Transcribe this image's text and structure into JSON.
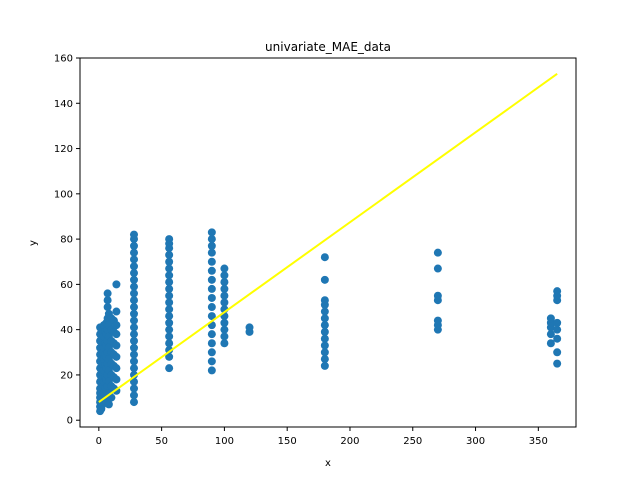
{
  "chart_data": {
    "type": "scatter",
    "title": "univariate_MAE_data",
    "xlabel": "x",
    "ylabel": "y",
    "xlim": [
      -15,
      380
    ],
    "ylim": [
      -3,
      160
    ],
    "xticks": [
      0,
      50,
      100,
      150,
      200,
      250,
      300,
      350
    ],
    "yticks": [
      0,
      20,
      40,
      60,
      80,
      100,
      120,
      140,
      160
    ],
    "grid": false,
    "colors": {
      "points": "#1f77b4",
      "line": "#ffff00"
    },
    "series": [
      {
        "kind": "scatter",
        "points": [
          [
            1,
            4
          ],
          [
            1,
            6
          ],
          [
            1,
            8
          ],
          [
            1,
            10
          ],
          [
            1,
            12
          ],
          [
            1,
            14
          ],
          [
            1,
            17
          ],
          [
            1,
            20
          ],
          [
            1,
            23
          ],
          [
            1,
            26
          ],
          [
            1,
            29
          ],
          [
            1,
            32
          ],
          [
            1,
            35
          ],
          [
            1,
            38
          ],
          [
            1,
            41
          ],
          [
            2,
            5
          ],
          [
            2,
            9
          ],
          [
            2,
            13
          ],
          [
            2,
            18
          ],
          [
            2,
            22
          ],
          [
            2,
            27
          ],
          [
            2,
            31
          ],
          [
            2,
            36
          ],
          [
            2,
            40
          ],
          [
            3,
            7
          ],
          [
            3,
            11
          ],
          [
            3,
            16
          ],
          [
            3,
            21
          ],
          [
            3,
            25
          ],
          [
            3,
            30
          ],
          [
            3,
            34
          ],
          [
            3,
            39
          ],
          [
            4,
            8
          ],
          [
            4,
            12
          ],
          [
            4,
            17
          ],
          [
            4,
            22
          ],
          [
            4,
            27
          ],
          [
            4,
            32
          ],
          [
            4,
            37
          ],
          [
            4,
            42
          ],
          [
            5,
            9
          ],
          [
            5,
            14
          ],
          [
            5,
            19
          ],
          [
            5,
            24
          ],
          [
            5,
            29
          ],
          [
            5,
            34
          ],
          [
            5,
            39
          ],
          [
            6,
            8
          ],
          [
            6,
            13
          ],
          [
            6,
            18
          ],
          [
            6,
            23
          ],
          [
            6,
            28
          ],
          [
            6,
            33
          ],
          [
            6,
            38
          ],
          [
            6,
            43
          ],
          [
            7,
            10
          ],
          [
            7,
            15
          ],
          [
            7,
            20
          ],
          [
            7,
            25
          ],
          [
            7,
            30
          ],
          [
            7,
            35
          ],
          [
            7,
            40
          ],
          [
            7,
            45
          ],
          [
            7,
            50
          ],
          [
            7,
            53
          ],
          [
            7,
            56
          ],
          [
            8,
            7
          ],
          [
            8,
            12
          ],
          [
            8,
            17
          ],
          [
            8,
            22
          ],
          [
            8,
            27
          ],
          [
            8,
            32
          ],
          [
            8,
            37
          ],
          [
            8,
            42
          ],
          [
            8,
            47
          ],
          [
            10,
            10
          ],
          [
            10,
            15
          ],
          [
            10,
            20
          ],
          [
            10,
            25
          ],
          [
            10,
            30
          ],
          [
            10,
            35
          ],
          [
            10,
            40
          ],
          [
            10,
            45
          ],
          [
            12,
            14
          ],
          [
            12,
            19
          ],
          [
            12,
            24
          ],
          [
            12,
            29
          ],
          [
            12,
            34
          ],
          [
            12,
            39
          ],
          [
            12,
            44
          ],
          [
            14,
            13
          ],
          [
            14,
            18
          ],
          [
            14,
            23
          ],
          [
            14,
            28
          ],
          [
            14,
            33
          ],
          [
            14,
            38
          ],
          [
            14,
            42
          ],
          [
            14,
            48
          ],
          [
            14,
            60
          ],
          [
            28,
            8
          ],
          [
            28,
            11
          ],
          [
            28,
            14
          ],
          [
            28,
            17
          ],
          [
            28,
            20
          ],
          [
            28,
            23
          ],
          [
            28,
            26
          ],
          [
            28,
            29
          ],
          [
            28,
            32
          ],
          [
            28,
            35
          ],
          [
            28,
            38
          ],
          [
            28,
            41
          ],
          [
            28,
            44
          ],
          [
            28,
            47
          ],
          [
            28,
            50
          ],
          [
            28,
            53
          ],
          [
            28,
            56
          ],
          [
            28,
            59
          ],
          [
            28,
            62
          ],
          [
            28,
            65
          ],
          [
            28,
            68
          ],
          [
            28,
            71
          ],
          [
            28,
            74
          ],
          [
            28,
            77
          ],
          [
            28,
            80
          ],
          [
            28,
            82
          ],
          [
            56,
            23
          ],
          [
            56,
            28
          ],
          [
            56,
            31
          ],
          [
            56,
            34
          ],
          [
            56,
            37
          ],
          [
            56,
            40
          ],
          [
            56,
            43
          ],
          [
            56,
            46
          ],
          [
            56,
            49
          ],
          [
            56,
            52
          ],
          [
            56,
            55
          ],
          [
            56,
            58
          ],
          [
            56,
            61
          ],
          [
            56,
            64
          ],
          [
            56,
            67
          ],
          [
            56,
            70
          ],
          [
            56,
            73
          ],
          [
            56,
            76
          ],
          [
            56,
            78
          ],
          [
            56,
            80
          ],
          [
            90,
            22
          ],
          [
            90,
            26
          ],
          [
            90,
            30
          ],
          [
            90,
            34
          ],
          [
            90,
            38
          ],
          [
            90,
            42
          ],
          [
            90,
            46
          ],
          [
            90,
            50
          ],
          [
            90,
            54
          ],
          [
            90,
            58
          ],
          [
            90,
            62
          ],
          [
            90,
            66
          ],
          [
            90,
            70
          ],
          [
            90,
            74
          ],
          [
            90,
            77
          ],
          [
            90,
            80
          ],
          [
            90,
            83
          ],
          [
            100,
            34
          ],
          [
            100,
            37
          ],
          [
            100,
            40
          ],
          [
            100,
            43
          ],
          [
            100,
            46
          ],
          [
            100,
            49
          ],
          [
            100,
            52
          ],
          [
            100,
            55
          ],
          [
            100,
            58
          ],
          [
            100,
            61
          ],
          [
            100,
            64
          ],
          [
            100,
            67
          ],
          [
            120,
            39
          ],
          [
            120,
            41
          ],
          [
            180,
            24
          ],
          [
            180,
            27
          ],
          [
            180,
            30
          ],
          [
            180,
            33
          ],
          [
            180,
            36
          ],
          [
            180,
            39
          ],
          [
            180,
            42
          ],
          [
            180,
            45
          ],
          [
            180,
            48
          ],
          [
            180,
            51
          ],
          [
            180,
            53
          ],
          [
            180,
            62
          ],
          [
            180,
            72
          ],
          [
            270,
            40
          ],
          [
            270,
            42
          ],
          [
            270,
            44
          ],
          [
            270,
            53
          ],
          [
            270,
            55
          ],
          [
            270,
            67
          ],
          [
            270,
            74
          ],
          [
            360,
            34
          ],
          [
            360,
            38
          ],
          [
            360,
            41
          ],
          [
            360,
            43
          ],
          [
            360,
            45
          ],
          [
            365,
            25
          ],
          [
            365,
            30
          ],
          [
            365,
            36
          ],
          [
            365,
            40
          ],
          [
            365,
            43
          ],
          [
            365,
            53
          ],
          [
            365,
            55
          ],
          [
            365,
            57
          ]
        ]
      },
      {
        "kind": "line",
        "points": [
          [
            0,
            8
          ],
          [
            365,
            153
          ]
        ]
      }
    ]
  }
}
